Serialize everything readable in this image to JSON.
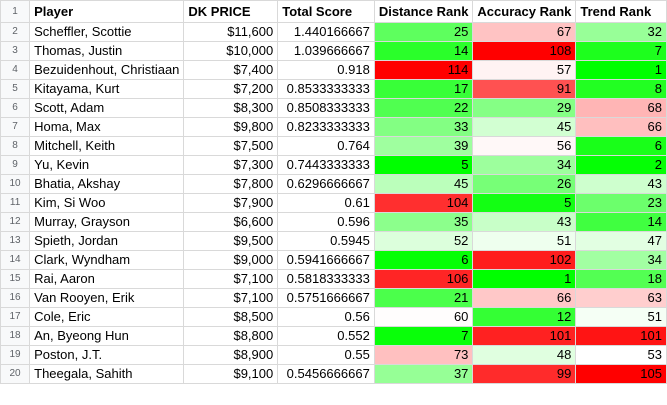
{
  "headers": [
    "Player",
    "DK PRICE",
    "Total Score",
    "Distance Rank",
    "Accuracy Rank",
    "Trend Rank"
  ],
  "header_row_number": "1",
  "rows": [
    {
      "rn": "2",
      "player": "Scheffler, Scottie",
      "price": "$11,600",
      "score": "1.440166667",
      "dist": 25,
      "acc": 67,
      "trend": 32
    },
    {
      "rn": "3",
      "player": "Thomas, Justin",
      "price": "$10,000",
      "score": "1.039666667",
      "dist": 14,
      "acc": 108,
      "trend": 7
    },
    {
      "rn": "4",
      "player": "Bezuidenhout, Christiaan",
      "price": "$7,400",
      "score": "0.918",
      "dist": 114,
      "acc": 57,
      "trend": 1
    },
    {
      "rn": "5",
      "player": "Kitayama, Kurt",
      "price": "$7,200",
      "score": "0.8533333333",
      "dist": 17,
      "acc": 91,
      "trend": 8
    },
    {
      "rn": "6",
      "player": "Scott, Adam",
      "price": "$8,300",
      "score": "0.8508333333",
      "dist": 22,
      "acc": 29,
      "trend": 68
    },
    {
      "rn": "7",
      "player": "Homa, Max",
      "price": "$9,800",
      "score": "0.8233333333",
      "dist": 33,
      "acc": 45,
      "trend": 66
    },
    {
      "rn": "8",
      "player": "Mitchell, Keith",
      "price": "$7,500",
      "score": "0.764",
      "dist": 39,
      "acc": 56,
      "trend": 6
    },
    {
      "rn": "9",
      "player": "Yu, Kevin",
      "price": "$7,300",
      "score": "0.7443333333",
      "dist": 5,
      "acc": 34,
      "trend": 2
    },
    {
      "rn": "10",
      "player": "Bhatia, Akshay",
      "price": "$7,800",
      "score": "0.6296666667",
      "dist": 45,
      "acc": 26,
      "trend": 43
    },
    {
      "rn": "11",
      "player": "Kim, Si Woo",
      "price": "$7,900",
      "score": "0.61",
      "dist": 104,
      "acc": 5,
      "trend": 23
    },
    {
      "rn": "12",
      "player": "Murray, Grayson",
      "price": "$6,600",
      "score": "0.596",
      "dist": 35,
      "acc": 43,
      "trend": 14
    },
    {
      "rn": "13",
      "player": "Spieth, Jordan",
      "price": "$9,500",
      "score": "0.5945",
      "dist": 52,
      "acc": 51,
      "trend": 47
    },
    {
      "rn": "14",
      "player": "Clark, Wyndham",
      "price": "$9,000",
      "score": "0.5941666667",
      "dist": 6,
      "acc": 102,
      "trend": 34
    },
    {
      "rn": "15",
      "player": "Rai, Aaron",
      "price": "$7,100",
      "score": "0.5818333333",
      "dist": 106,
      "acc": 1,
      "trend": 18
    },
    {
      "rn": "16",
      "player": "Van Rooyen, Erik",
      "price": "$7,100",
      "score": "0.5751666667",
      "dist": 21,
      "acc": 66,
      "trend": 63
    },
    {
      "rn": "17",
      "player": "Cole, Eric",
      "price": "$8,500",
      "score": "0.56",
      "dist": 60,
      "acc": 12,
      "trend": 51
    },
    {
      "rn": "18",
      "player": "An, Byeong Hun",
      "price": "$8,800",
      "score": "0.552",
      "dist": 7,
      "acc": 101,
      "trend": 101
    },
    {
      "rn": "19",
      "player": "Poston, J.T.",
      "price": "$8,900",
      "score": "0.55",
      "dist": 73,
      "acc": 48,
      "trend": 53
    },
    {
      "rn": "20",
      "player": "Theegala, Sahith",
      "price": "$9,100",
      "score": "0.5456666667",
      "dist": 37,
      "acc": 99,
      "trend": 105
    }
  ],
  "colors": {
    "scale_low": "#00ff00",
    "scale_mid": "#ffffff",
    "scale_high": "#ff0000",
    "grid": "#d9d9d9",
    "rownum_bg": "#f8f9fa"
  }
}
